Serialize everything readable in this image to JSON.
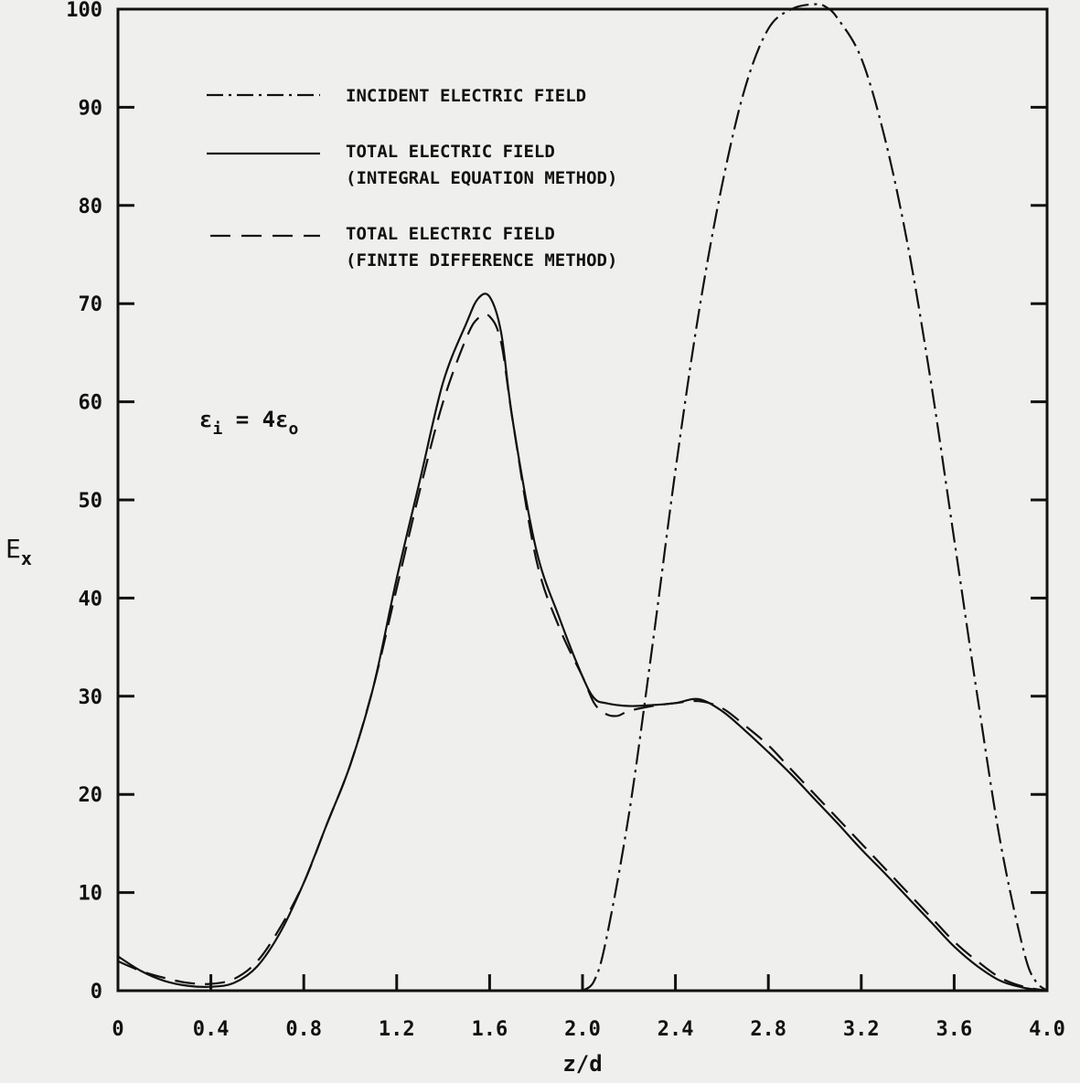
{
  "chart_data": {
    "type": "line",
    "xlabel": "z/d",
    "ylabel_main": "E",
    "ylabel_sub": "x",
    "xlim": [
      0,
      4.0
    ],
    "ylim": [
      0,
      100
    ],
    "x_ticks": [
      "0",
      "0.4",
      "0.8",
      "1.2",
      "1.6",
      "2.0",
      "2.4",
      "2.8",
      "3.2",
      "3.6",
      "4.0"
    ],
    "y_ticks": [
      "0",
      "10",
      "20",
      "30",
      "40",
      "50",
      "60",
      "70",
      "80",
      "90",
      "100"
    ],
    "grid": false,
    "legend_position": "top-left",
    "annotation": {
      "symbol": "ε",
      "sub_i": "i",
      "equals": " = 4",
      "sub_o": "o"
    },
    "series": [
      {
        "name": "INCIDENT ELECTRIC FIELD",
        "style": "dash-dot",
        "x": [
          2.0,
          2.05,
          2.1,
          2.2,
          2.3,
          2.4,
          2.5,
          2.6,
          2.7,
          2.8,
          2.9,
          3.0,
          3.05,
          3.1,
          3.2,
          3.3,
          3.4,
          3.5,
          3.6,
          3.7,
          3.8,
          3.9,
          3.95,
          4.0
        ],
        "y": [
          0,
          1,
          5,
          18,
          35,
          53,
          69,
          82,
          92,
          98,
          100,
          100.5,
          100.2,
          99,
          95,
          87,
          76,
          62,
          46,
          30,
          15,
          4,
          1,
          0
        ]
      },
      {
        "name": "TOTAL ELECTRIC FIELD\n(INTEGRAL EQUATION METHOD)",
        "style": "solid",
        "x": [
          0,
          0.1,
          0.2,
          0.3,
          0.4,
          0.5,
          0.6,
          0.7,
          0.8,
          0.9,
          1.0,
          1.1,
          1.2,
          1.3,
          1.4,
          1.5,
          1.55,
          1.6,
          1.65,
          1.7,
          1.8,
          1.9,
          2.0,
          2.05,
          2.1,
          2.2,
          2.3,
          2.4,
          2.5,
          2.6,
          2.7,
          2.8,
          2.9,
          3.0,
          3.1,
          3.2,
          3.3,
          3.4,
          3.5,
          3.6,
          3.7,
          3.8,
          3.9,
          4.0
        ],
        "y": [
          3.5,
          2,
          1,
          0.5,
          0.4,
          0.8,
          2.5,
          6,
          11,
          17,
          23,
          31,
          42,
          52,
          62,
          68,
          70.5,
          70.7,
          67,
          58,
          45,
          38,
          32,
          29.8,
          29.3,
          29,
          29.1,
          29.3,
          29.7,
          28.5,
          26.5,
          24.3,
          22,
          19.5,
          17,
          14.4,
          12,
          9.5,
          7,
          4.5,
          2.5,
          1,
          0.3,
          0
        ]
      },
      {
        "name": "TOTAL ELECTRIC FIELD\n(FINITE DIFFERENCE METHOD)",
        "style": "dashed",
        "x": [
          0,
          0.1,
          0.2,
          0.3,
          0.4,
          0.5,
          0.6,
          0.7,
          0.8,
          0.9,
          1.0,
          1.1,
          1.2,
          1.3,
          1.4,
          1.5,
          1.55,
          1.6,
          1.65,
          1.7,
          1.8,
          1.9,
          2.0,
          2.05,
          2.1,
          2.15,
          2.2,
          2.3,
          2.4,
          2.5,
          2.6,
          2.7,
          2.8,
          2.9,
          3.0,
          3.1,
          3.2,
          3.3,
          3.4,
          3.5,
          3.6,
          3.7,
          3.8,
          3.9,
          4.0
        ],
        "y": [
          3,
          2,
          1.3,
          0.8,
          0.7,
          1.2,
          3,
          6.5,
          11,
          17,
          23,
          31,
          41,
          51,
          60,
          66.5,
          68.5,
          68.7,
          66,
          58,
          44,
          37,
          32,
          29.3,
          28.2,
          28.0,
          28.5,
          29,
          29.3,
          29.5,
          28.8,
          27,
          25,
          22.5,
          20,
          17.5,
          15,
          12.5,
          10,
          7.5,
          5,
          3,
          1.3,
          0.4,
          0
        ]
      }
    ]
  }
}
